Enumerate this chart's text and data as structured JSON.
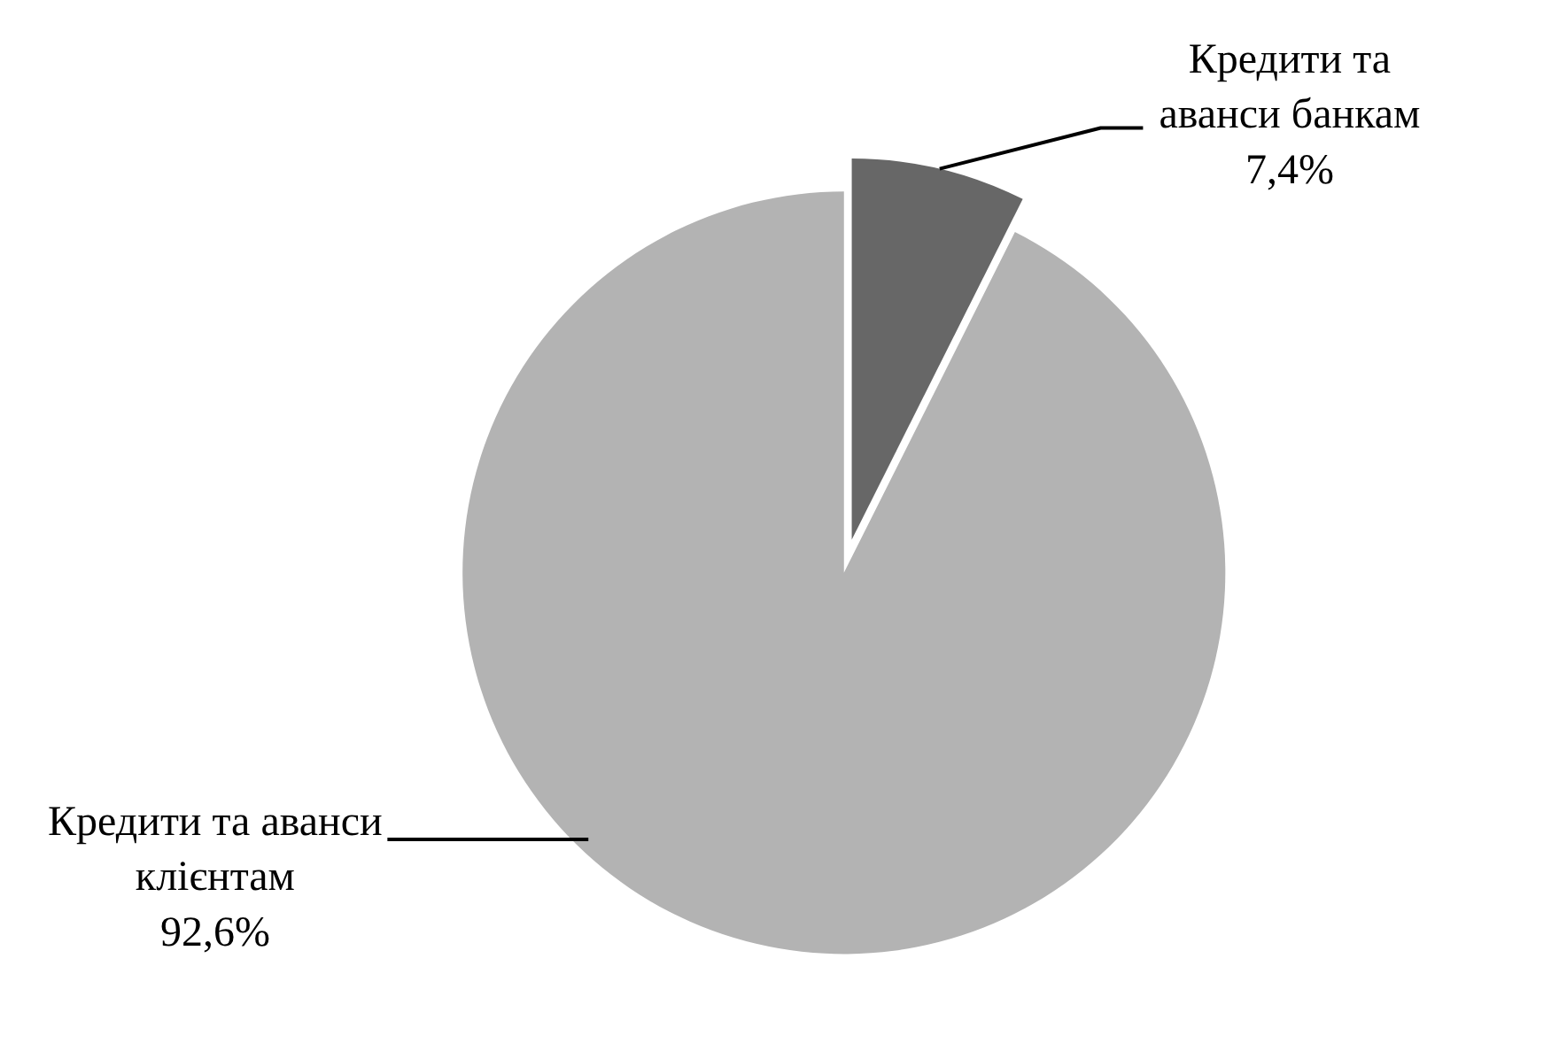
{
  "chart_data": {
    "type": "pie",
    "categories": [
      "Кредити та аванси банкам",
      "Кредити та аванси клієнтам"
    ],
    "values": [
      7.4,
      92.6
    ],
    "colors": [
      "#676767",
      "#b3b3b3"
    ],
    "value_labels": [
      "7,4%",
      "92,6%"
    ]
  }
}
